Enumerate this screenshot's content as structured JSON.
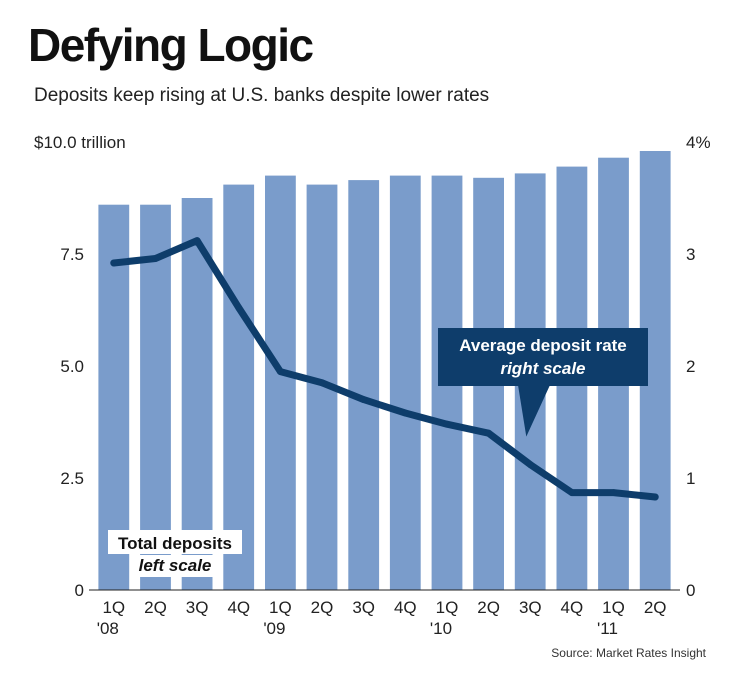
{
  "page": {
    "title": "Defying Logic",
    "subtitle": "Deposits keep rising at U.S. banks despite lower rates",
    "source": "Source: Market Rates Insight"
  },
  "chart_data": {
    "type": "bar",
    "title": "Defying Logic",
    "subtitle": "Deposits keep rising at U.S. banks despite lower rates",
    "categories": [
      "1Q '08",
      "2Q",
      "3Q",
      "4Q",
      "1Q '09",
      "2Q",
      "3Q",
      "4Q",
      "1Q '10",
      "2Q",
      "3Q",
      "4Q",
      "1Q '11",
      "2Q"
    ],
    "category_labels": [
      [
        "1Q",
        "'08"
      ],
      [
        "2Q",
        ""
      ],
      [
        "3Q",
        ""
      ],
      [
        "4Q",
        ""
      ],
      [
        "1Q",
        "'09"
      ],
      [
        "2Q",
        ""
      ],
      [
        "3Q",
        ""
      ],
      [
        "4Q",
        ""
      ],
      [
        "1Q",
        "'10"
      ],
      [
        "2Q",
        ""
      ],
      [
        "3Q",
        ""
      ],
      [
        "4Q",
        ""
      ],
      [
        "1Q",
        "'11"
      ],
      [
        "2Q",
        ""
      ]
    ],
    "series": [
      {
        "name": "Total deposits",
        "subname": "left scale",
        "type": "bar",
        "axis": "left",
        "unit": "trillion dollars",
        "color": "#7a9ccb",
        "values": [
          8.6,
          8.6,
          8.75,
          9.05,
          9.25,
          9.05,
          9.15,
          9.25,
          9.25,
          9.2,
          9.3,
          9.45,
          9.65,
          9.8
        ]
      },
      {
        "name": "Average deposit rate",
        "subname": "right scale",
        "type": "line",
        "axis": "right",
        "unit": "percent",
        "color": "#0e3d6b",
        "values": [
          2.92,
          2.96,
          3.12,
          2.52,
          1.95,
          1.85,
          1.7,
          1.58,
          1.48,
          1.4,
          1.12,
          0.87,
          0.87,
          0.83
        ]
      }
    ],
    "left_axis": {
      "ylim": [
        0,
        10
      ],
      "ticks": [
        "0",
        "2.5",
        "5.0",
        "7.5",
        "$10.0 trillion"
      ],
      "tick_values": [
        0,
        2.5,
        5.0,
        7.5,
        10.0
      ]
    },
    "right_axis": {
      "ylim": [
        0,
        4
      ],
      "ticks": [
        "0",
        "1",
        "2",
        "3",
        "4%"
      ],
      "tick_values": [
        0,
        1,
        2,
        3,
        4
      ]
    },
    "xlabel": "",
    "ylabel": "",
    "grid": false,
    "background": "#ffffff"
  }
}
